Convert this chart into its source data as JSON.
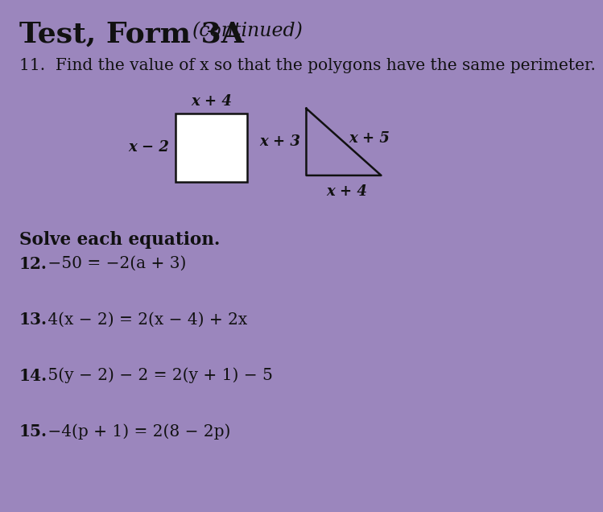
{
  "background_color": "#9b86bd",
  "title_bold": "Test, Form 3A",
  "title_italic": "(continued)",
  "q11_text": "11.  Find the value of x so that the polygons have the same perimeter.",
  "rect_label_top": "x + 4",
  "rect_label_left": "x − 2",
  "tri_label_left": "x + 3",
  "tri_label_hyp": "x + 5",
  "tri_label_bot": "x + 4",
  "solve_header": "Solve each equation.",
  "q12_num": "12.",
  "q12_eq": " −50 = −2(a + 3)",
  "q13_num": "13.",
  "q13_eq": " 4(x − 2) = 2(x − 4) + 2x",
  "q14_num": "14.",
  "q14_eq": " 5(y − 2) − 2 = 2(y + 1) − 5",
  "q15_num": "15.",
  "q15_eq": " −4(p + 1) = 2(8 − 2p)",
  "text_color": "#111111",
  "shape_color": "#111111"
}
